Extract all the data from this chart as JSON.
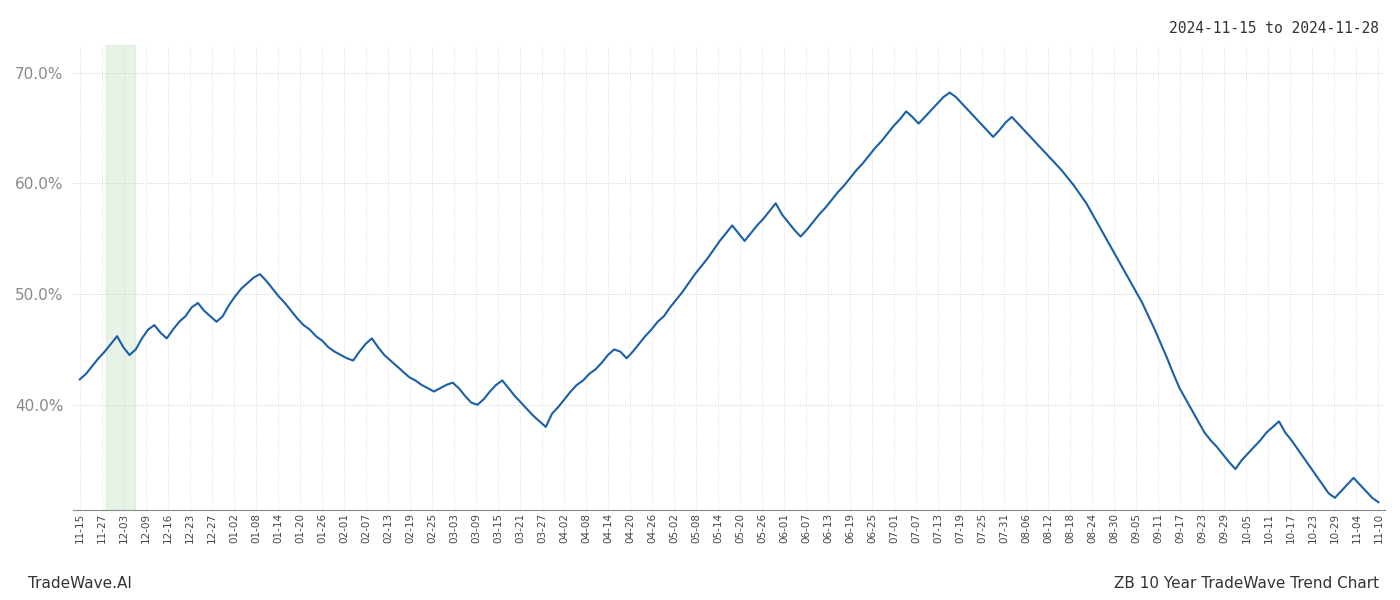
{
  "title_top_right": "2024-11-15 to 2024-11-28",
  "label_bottom_left": "TradeWave.AI",
  "label_bottom_right": "ZB 10 Year TradeWave Trend Chart",
  "line_color": "#1a5fa8",
  "line_width": 1.5,
  "bg_color": "#ffffff",
  "grid_color": "#cccccc",
  "ylim": [
    0.305,
    0.725
  ],
  "yticks": [
    0.4,
    0.5,
    0.6,
    0.7
  ],
  "shade_color": "#c8e6c9",
  "shade_alpha": 0.45,
  "xtick_labels": [
    "11-15",
    "11-27",
    "12-03",
    "12-09",
    "12-16",
    "12-23",
    "12-27",
    "01-02",
    "01-08",
    "01-14",
    "01-20",
    "01-26",
    "02-01",
    "02-07",
    "02-13",
    "02-19",
    "02-25",
    "03-03",
    "03-09",
    "03-15",
    "03-21",
    "03-27",
    "04-02",
    "04-08",
    "04-14",
    "04-20",
    "04-26",
    "05-02",
    "05-08",
    "05-14",
    "05-20",
    "05-26",
    "06-01",
    "06-07",
    "06-13",
    "06-19",
    "06-25",
    "07-01",
    "07-07",
    "07-13",
    "07-19",
    "07-25",
    "07-31",
    "08-06",
    "08-12",
    "08-18",
    "08-24",
    "08-30",
    "09-05",
    "09-11",
    "09-17",
    "09-23",
    "09-29",
    "10-05",
    "10-11",
    "10-17",
    "10-23",
    "10-29",
    "11-04",
    "11-10"
  ],
  "y_values": [
    0.423,
    0.428,
    0.435,
    0.442,
    0.448,
    0.455,
    0.462,
    0.452,
    0.445,
    0.45,
    0.46,
    0.468,
    0.472,
    0.465,
    0.46,
    0.468,
    0.475,
    0.48,
    0.488,
    0.492,
    0.485,
    0.48,
    0.475,
    0.48,
    0.49,
    0.498,
    0.505,
    0.51,
    0.515,
    0.518,
    0.512,
    0.505,
    0.498,
    0.492,
    0.485,
    0.478,
    0.472,
    0.468,
    0.462,
    0.458,
    0.452,
    0.448,
    0.445,
    0.442,
    0.44,
    0.448,
    0.455,
    0.46,
    0.452,
    0.445,
    0.44,
    0.435,
    0.43,
    0.425,
    0.422,
    0.418,
    0.415,
    0.412,
    0.415,
    0.418,
    0.42,
    0.415,
    0.408,
    0.402,
    0.4,
    0.405,
    0.412,
    0.418,
    0.422,
    0.415,
    0.408,
    0.402,
    0.396,
    0.39,
    0.385,
    0.38,
    0.392,
    0.398,
    0.405,
    0.412,
    0.418,
    0.422,
    0.428,
    0.432,
    0.438,
    0.445,
    0.45,
    0.448,
    0.442,
    0.448,
    0.455,
    0.462,
    0.468,
    0.475,
    0.48,
    0.488,
    0.495,
    0.502,
    0.51,
    0.518,
    0.525,
    0.532,
    0.54,
    0.548,
    0.555,
    0.562,
    0.555,
    0.548,
    0.555,
    0.562,
    0.568,
    0.575,
    0.582,
    0.572,
    0.565,
    0.558,
    0.552,
    0.558,
    0.565,
    0.572,
    0.578,
    0.585,
    0.592,
    0.598,
    0.605,
    0.612,
    0.618,
    0.625,
    0.632,
    0.638,
    0.645,
    0.652,
    0.658,
    0.665,
    0.66,
    0.654,
    0.66,
    0.666,
    0.672,
    0.678,
    0.682,
    0.678,
    0.672,
    0.666,
    0.66,
    0.654,
    0.648,
    0.642,
    0.648,
    0.655,
    0.66,
    0.654,
    0.648,
    0.642,
    0.636,
    0.63,
    0.624,
    0.618,
    0.612,
    0.605,
    0.598,
    0.59,
    0.582,
    0.572,
    0.562,
    0.552,
    0.542,
    0.532,
    0.522,
    0.512,
    0.502,
    0.492,
    0.48,
    0.468,
    0.455,
    0.442,
    0.428,
    0.415,
    0.405,
    0.395,
    0.385,
    0.375,
    0.368,
    0.362,
    0.355,
    0.348,
    0.342,
    0.35,
    0.356,
    0.362,
    0.368,
    0.375,
    0.38,
    0.385,
    0.375,
    0.368,
    0.36,
    0.352,
    0.344,
    0.336,
    0.328,
    0.32,
    0.316,
    0.322,
    0.328,
    0.334,
    0.328,
    0.322,
    0.316,
    0.312
  ]
}
